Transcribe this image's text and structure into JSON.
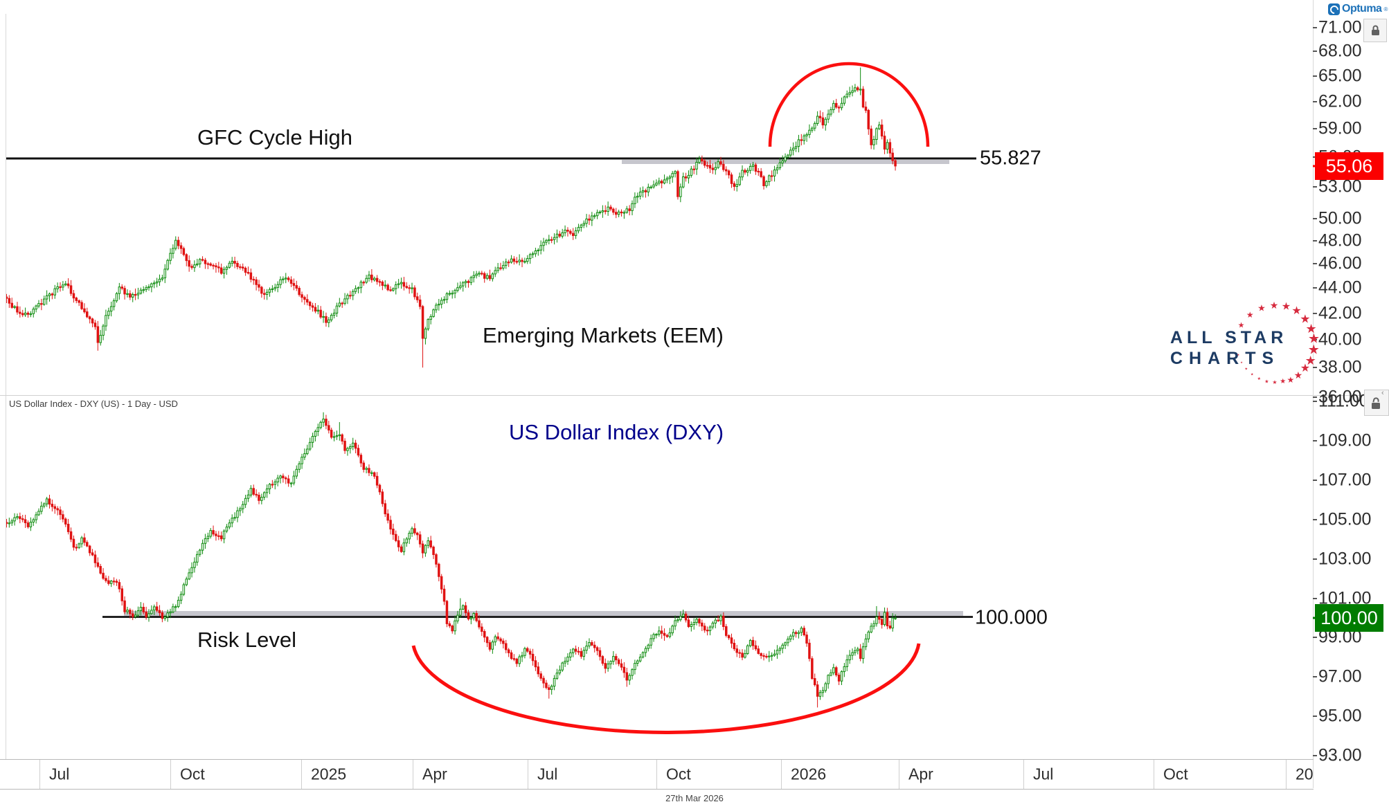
{
  "brand": {
    "logo_text": "Optuma",
    "logo_color": "#1c71b8",
    "registered_mark": "®"
  },
  "watermark": {
    "line1": "ALL STAR",
    "line2": "CHARTS",
    "text_color": "#1d3b63",
    "star_color": "#d62a3e"
  },
  "top_pane": {
    "title": "Emerging Markets (EEM)",
    "annotation": "GFC Cycle High",
    "level_label": "55.827",
    "last_price": "55.06",
    "last_price_color": "#fb0000",
    "axis_labels": [
      "71.00",
      "68.00",
      "65.00",
      "62.00",
      "59.00",
      "56.00",
      "53.00",
      "50.00",
      "48.00",
      "46.00",
      "44.00",
      "42.00",
      "40.00",
      "38.00",
      "36.00"
    ]
  },
  "bottom_pane": {
    "caption": "US Dollar Index - DXY (US) - 1 Day - USD",
    "title": "US Dollar Index (DXY)",
    "title_color": "#00008b",
    "annotation": "Risk Level",
    "level_label": "100.000",
    "last_price": "100.00",
    "last_price_color": "#007c00",
    "axis_labels": [
      "111.00",
      "109.00",
      "107.00",
      "105.00",
      "103.00",
      "101.00",
      "99.00",
      "97.00",
      "95.00",
      "93.00"
    ]
  },
  "x_axis": {
    "labels": [
      "Jul",
      "Oct",
      "2025",
      "Apr",
      "Jul",
      "Oct",
      "2026",
      "Apr",
      "Jul",
      "Oct",
      "20"
    ],
    "footer_date": "27th Mar 2026"
  },
  "chart_data": [
    {
      "type": "candlestick",
      "name": "Emerging Markets (EEM)",
      "timeframe": "1 Day",
      "y_scale": "log",
      "x_span": "Jun 2024 - Mar 2026",
      "horizontal_level": {
        "value": 55.827,
        "label": "GFC Cycle High"
      },
      "last_close": 55.06,
      "up_color": "#0b8a0b",
      "down_color": "#e01212",
      "annotation_arc": {
        "shape": "dome",
        "color": "#fb0f0f",
        "meaning": "topping arc over Jan-Mar 2026 rally and failure"
      },
      "anchors": [
        [
          0,
          43.0
        ],
        [
          4,
          42.2
        ],
        [
          8,
          41.8
        ],
        [
          12,
          42.6
        ],
        [
          17,
          43.6
        ],
        [
          22,
          44.4
        ],
        [
          26,
          43.0
        ],
        [
          29,
          42.0
        ],
        [
          32,
          41.2
        ],
        [
          33,
          40.9
        ],
        [
          34,
          39.8
        ],
        [
          37,
          41.8
        ],
        [
          42,
          44.0
        ],
        [
          46,
          43.2
        ],
        [
          50,
          43.8
        ],
        [
          54,
          44.3
        ],
        [
          58,
          45.0
        ],
        [
          61,
          46.8
        ],
        [
          63,
          48.0
        ],
        [
          65,
          47.4
        ],
        [
          68,
          45.6
        ],
        [
          72,
          46.3
        ],
        [
          76,
          46.0
        ],
        [
          80,
          45.3
        ],
        [
          84,
          46.2
        ],
        [
          88,
          45.6
        ],
        [
          92,
          44.6
        ],
        [
          96,
          43.4
        ],
        [
          100,
          44.2
        ],
        [
          104,
          44.8
        ],
        [
          108,
          43.9
        ],
        [
          112,
          42.8
        ],
        [
          116,
          42.1
        ],
        [
          119,
          41.4
        ],
        [
          123,
          42.4
        ],
        [
          127,
          43.3
        ],
        [
          131,
          44.2
        ],
        [
          135,
          44.9
        ],
        [
          139,
          44.3
        ],
        [
          143,
          43.8
        ],
        [
          147,
          44.4
        ],
        [
          151,
          43.9
        ],
        [
          154,
          42.5
        ],
        [
          155,
          40.0
        ],
        [
          157,
          41.5
        ],
        [
          160,
          42.6
        ],
        [
          164,
          43.4
        ],
        [
          168,
          43.9
        ],
        [
          172,
          44.6
        ],
        [
          176,
          45.1
        ],
        [
          180,
          44.8
        ],
        [
          184,
          45.7
        ],
        [
          188,
          46.4
        ],
        [
          192,
          46.1
        ],
        [
          196,
          47.0
        ],
        [
          200,
          47.7
        ],
        [
          204,
          48.3
        ],
        [
          208,
          48.8
        ],
        [
          211,
          48.4
        ],
        [
          215,
          49.7
        ],
        [
          219,
          50.3
        ],
        [
          224,
          50.9
        ],
        [
          228,
          50.4
        ],
        [
          232,
          50.9
        ],
        [
          234,
          52.1
        ],
        [
          238,
          52.6
        ],
        [
          242,
          53.2
        ],
        [
          246,
          53.8
        ],
        [
          249,
          54.3
        ],
        [
          250,
          52.2
        ],
        [
          252,
          53.8
        ],
        [
          255,
          54.6
        ],
        [
          258,
          55.6
        ],
        [
          261,
          55.0
        ],
        [
          263,
          54.9
        ],
        [
          265,
          55.3
        ],
        [
          268,
          54.6
        ],
        [
          271,
          52.9
        ],
        [
          274,
          54.4
        ],
        [
          278,
          55.2
        ],
        [
          280,
          54.3
        ],
        [
          282,
          53.3
        ],
        [
          285,
          54.2
        ],
        [
          288,
          55.3
        ],
        [
          291,
          56.3
        ],
        [
          294,
          57.3
        ],
        [
          297,
          58.2
        ],
        [
          299,
          58.6
        ],
        [
          302,
          60.3
        ],
        [
          304,
          59.6
        ],
        [
          306,
          60.8
        ],
        [
          308,
          61.8
        ],
        [
          310,
          61.2
        ],
        [
          312,
          62.5
        ],
        [
          314,
          63.2
        ],
        [
          316,
          63.6
        ],
        [
          318,
          63.2
        ],
        [
          319,
          61.5
        ],
        [
          320,
          60.9
        ],
        [
          321,
          59.0
        ],
        [
          322,
          57.2
        ],
        [
          323,
          58.0
        ],
        [
          324,
          58.9
        ],
        [
          325,
          59.3
        ],
        [
          326,
          58.1
        ],
        [
          327,
          57.0
        ],
        [
          328,
          57.6
        ],
        [
          329,
          56.2
        ],
        [
          330,
          55.6
        ],
        [
          331,
          55.06
        ]
      ],
      "wick_overrides": [
        {
          "i": 34,
          "low": 39.2
        },
        {
          "i": 155,
          "low": 38.0
        },
        {
          "i": 318,
          "high": 66.0
        },
        {
          "i": 331,
          "low": 54.75
        }
      ]
    },
    {
      "type": "candlestick",
      "name": "US Dollar Index (DXY)",
      "timeframe": "1 Day",
      "y_scale": "linear",
      "x_span": "Jun 2024 - Mar 2026",
      "horizontal_level": {
        "value": 100.0,
        "label": "Risk Level"
      },
      "last_close": 100.0,
      "up_color": "#0b8a0b",
      "down_color": "#e01212",
      "annotation_arc": {
        "shape": "saucer",
        "color": "#fb0f0f",
        "meaning": "basing arc under Apr 2025 - Mar 2026 lows"
      },
      "anchors": [
        [
          0,
          104.7
        ],
        [
          4,
          105.2
        ],
        [
          8,
          104.6
        ],
        [
          12,
          105.5
        ],
        [
          15,
          106.0
        ],
        [
          19,
          105.4
        ],
        [
          22,
          104.8
        ],
        [
          25,
          103.5
        ],
        [
          28,
          104.0
        ],
        [
          32,
          103.2
        ],
        [
          35,
          102.2
        ],
        [
          38,
          101.8
        ],
        [
          41,
          101.9
        ],
        [
          44,
          100.4
        ],
        [
          47,
          100.1
        ],
        [
          50,
          100.5
        ],
        [
          52,
          100.0
        ],
        [
          55,
          100.6
        ],
        [
          58,
          100.0
        ],
        [
          60,
          100.3
        ],
        [
          63,
          100.6
        ],
        [
          66,
          101.6
        ],
        [
          70,
          102.9
        ],
        [
          73,
          103.8
        ],
        [
          76,
          104.4
        ],
        [
          80,
          104.1
        ],
        [
          84,
          105.0
        ],
        [
          88,
          105.8
        ],
        [
          91,
          106.5
        ],
        [
          94,
          106.0
        ],
        [
          98,
          106.7
        ],
        [
          102,
          107.3
        ],
        [
          106,
          106.8
        ],
        [
          110,
          108.2
        ],
        [
          113,
          108.9
        ],
        [
          116,
          109.7
        ],
        [
          118,
          110.1
        ],
        [
          121,
          109.2
        ],
        [
          124,
          109.3
        ],
        [
          126,
          108.6
        ],
        [
          129,
          108.9
        ],
        [
          131,
          108.2
        ],
        [
          133,
          107.6
        ],
        [
          137,
          107.2
        ],
        [
          139,
          106.4
        ],
        [
          141,
          105.3
        ],
        [
          143,
          104.5
        ],
        [
          145,
          103.9
        ],
        [
          147,
          103.4
        ],
        [
          149,
          104.1
        ],
        [
          151,
          104.6
        ],
        [
          153,
          104.2
        ],
        [
          155,
          103.4
        ],
        [
          157,
          103.9
        ],
        [
          159,
          103.2
        ],
        [
          161,
          102.2
        ],
        [
          163,
          100.9
        ],
        [
          164,
          99.8
        ],
        [
          166,
          99.4
        ],
        [
          168,
          100.1
        ],
        [
          170,
          100.7
        ],
        [
          172,
          99.9
        ],
        [
          174,
          100.3
        ],
        [
          176,
          99.6
        ],
        [
          178,
          99.1
        ],
        [
          180,
          98.5
        ],
        [
          182,
          99.0
        ],
        [
          185,
          98.7
        ],
        [
          187,
          98.2
        ],
        [
          190,
          97.7
        ],
        [
          193,
          98.4
        ],
        [
          196,
          97.9
        ],
        [
          199,
          96.9
        ],
        [
          202,
          96.3
        ],
        [
          205,
          97.1
        ],
        [
          208,
          97.9
        ],
        [
          211,
          98.5
        ],
        [
          214,
          98.1
        ],
        [
          217,
          98.7
        ],
        [
          220,
          98.3
        ],
        [
          223,
          97.4
        ],
        [
          226,
          98.0
        ],
        [
          229,
          97.5
        ],
        [
          231,
          96.9
        ],
        [
          234,
          97.7
        ],
        [
          237,
          98.3
        ],
        [
          240,
          98.9
        ],
        [
          243,
          99.4
        ],
        [
          246,
          99.0
        ],
        [
          249,
          99.8
        ],
        [
          252,
          100.1
        ],
        [
          254,
          99.5
        ],
        [
          257,
          99.9
        ],
        [
          260,
          99.3
        ],
        [
          263,
          99.7
        ],
        [
          266,
          100.0
        ],
        [
          268,
          99.2
        ],
        [
          271,
          98.4
        ],
        [
          274,
          98.0
        ],
        [
          277,
          98.8
        ],
        [
          280,
          98.2
        ],
        [
          284,
          98.0
        ],
        [
          287,
          98.3
        ],
        [
          290,
          98.8
        ],
        [
          293,
          99.2
        ],
        [
          296,
          99.4
        ],
        [
          298,
          98.8
        ],
        [
          300,
          97.0
        ],
        [
          302,
          96.0
        ],
        [
          304,
          96.3
        ],
        [
          306,
          97.0
        ],
        [
          308,
          97.4
        ],
        [
          310,
          96.8
        ],
        [
          312,
          97.6
        ],
        [
          315,
          98.2
        ],
        [
          317,
          98.4
        ],
        [
          318,
          98.0
        ],
        [
          319,
          98.6
        ],
        [
          321,
          99.2
        ],
        [
          323,
          99.8
        ],
        [
          324,
          100.1
        ],
        [
          326,
          99.7
        ],
        [
          327,
          100.2
        ],
        [
          328,
          99.6
        ],
        [
          329,
          99.5
        ],
        [
          330,
          99.9
        ],
        [
          331,
          100.0
        ]
      ],
      "wick_overrides": [
        {
          "i": 118,
          "high": 110.45
        },
        {
          "i": 124,
          "high": 109.95
        },
        {
          "i": 169,
          "high": 101.0
        },
        {
          "i": 202,
          "low": 95.9
        },
        {
          "i": 231,
          "low": 96.5
        },
        {
          "i": 302,
          "low": 95.45
        },
        {
          "i": 324,
          "high": 100.6
        }
      ]
    }
  ]
}
